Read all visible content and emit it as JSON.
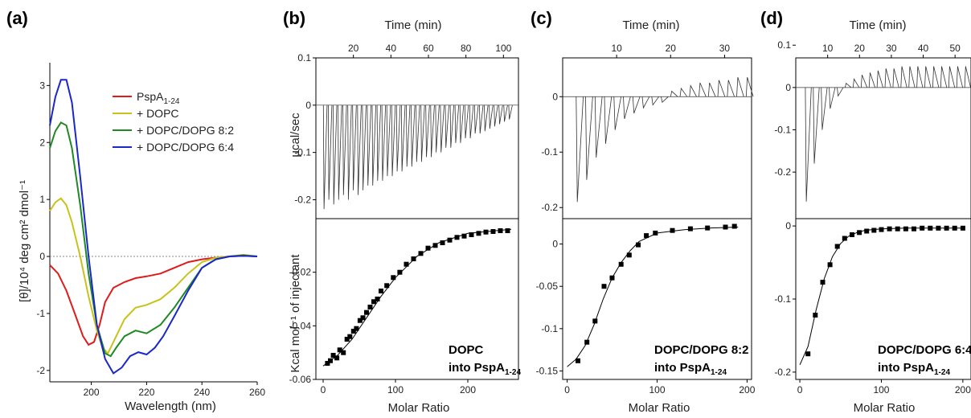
{
  "figure": {
    "panel_a": {
      "label": "(a)",
      "xlabel": "Wavelength (nm)",
      "ylabel": "[θ]/10⁴ deg cm² dmol⁻¹"
    },
    "panel_b": {
      "label": "(b)",
      "top_xlabel": "Time (min)",
      "top_ylabel": "μcal/sec",
      "bottom_xlabel": "Molar Ratio",
      "bottom_ylabel": "Kcal mol⁻¹ of injectant",
      "annotation_line1": "DOPC",
      "annotation_line2": "into PspA",
      "annotation_sub": "1-24"
    },
    "panel_c": {
      "label": "(c)",
      "top_xlabel": "Time (min)",
      "bottom_xlabel": "Molar Ratio",
      "annotation_line1": "DOPC/DOPG 8:2",
      "annotation_line2": "into PspA",
      "annotation_sub": "1-24"
    },
    "panel_d": {
      "label": "(d)",
      "top_xlabel": "Time (min)",
      "bottom_xlabel": "Molar Ratio",
      "annotation_line1": "DOPC/DOPG 6:4",
      "annotation_line2": "into PspA",
      "annotation_sub": "1-24"
    }
  },
  "chart_data": [
    {
      "panel": "a",
      "type": "line",
      "xlabel": "Wavelength (nm)",
      "ylabel": "[θ]/10⁴ deg cm² dmol⁻¹",
      "xlim": [
        185,
        260
      ],
      "ylim": [
        -2.2,
        3.4
      ],
      "xticks": [
        200,
        220,
        240,
        260
      ],
      "yticks": [
        -2,
        -1,
        0,
        1,
        2,
        3
      ],
      "reference_line": 0,
      "legend_position": "top-right",
      "series": [
        {
          "name": "PspA",
          "name_sub": "1-24",
          "color": "#e01b1b",
          "x": [
            185,
            188,
            191,
            194,
            197,
            199,
            201,
            203,
            205,
            208,
            212,
            216,
            220,
            225,
            230,
            235,
            240,
            245,
            250,
            255,
            260
          ],
          "y": [
            -0.15,
            -0.3,
            -0.6,
            -1.0,
            -1.4,
            -1.55,
            -1.5,
            -1.2,
            -0.8,
            -0.55,
            -0.45,
            -0.38,
            -0.35,
            -0.3,
            -0.2,
            -0.1,
            -0.05,
            -0.02,
            0.0,
            0.01,
            0.0
          ]
        },
        {
          "name": "+ DOPC",
          "color": "#c9c21a",
          "x": [
            185,
            187,
            189,
            191,
            193,
            196,
            199,
            202,
            204,
            206,
            208,
            212,
            216,
            220,
            225,
            230,
            235,
            240,
            245,
            250,
            255,
            260
          ],
          "y": [
            0.8,
            0.95,
            1.02,
            0.9,
            0.6,
            0.0,
            -0.7,
            -1.3,
            -1.6,
            -1.7,
            -1.5,
            -1.1,
            -0.9,
            -0.85,
            -0.75,
            -0.55,
            -0.3,
            -0.1,
            -0.02,
            0.0,
            0.03,
            0.0
          ]
        },
        {
          "name": "+ DOPC/DOPG 8:2",
          "color": "#1f8a24",
          "x": [
            185,
            187,
            189,
            191,
            193,
            196,
            199,
            202,
            205,
            207,
            209,
            212,
            216,
            220,
            225,
            230,
            235,
            240,
            245,
            250,
            255,
            260
          ],
          "y": [
            1.9,
            2.2,
            2.35,
            2.3,
            1.9,
            0.9,
            -0.3,
            -1.2,
            -1.7,
            -1.75,
            -1.6,
            -1.4,
            -1.3,
            -1.35,
            -1.2,
            -0.9,
            -0.55,
            -0.2,
            -0.05,
            0.0,
            0.02,
            0.0
          ]
        },
        {
          "name": "+ DOPC/DOPG 6:4",
          "color": "#1a28c9",
          "x": [
            185,
            187,
            189,
            191,
            193,
            196,
            199,
            202,
            205,
            208,
            211,
            214,
            217,
            220,
            223,
            226,
            230,
            235,
            240,
            245,
            250,
            255,
            260
          ],
          "y": [
            2.3,
            2.8,
            3.1,
            3.1,
            2.7,
            1.4,
            0.0,
            -1.2,
            -1.8,
            -2.05,
            -1.95,
            -1.75,
            -1.68,
            -1.72,
            -1.6,
            -1.4,
            -1.05,
            -0.6,
            -0.2,
            -0.05,
            0.0,
            0.01,
            0.0
          ]
        }
      ]
    },
    {
      "panel": "b-top",
      "type": "line",
      "description_series": "raw ITC heat rate",
      "xlabel": "Time (min)",
      "ylabel": "μcal/sec",
      "xlim": [
        0,
        108
      ],
      "ylim": [
        -0.24,
        0.1
      ],
      "xticks": [
        20,
        40,
        60,
        80,
        100
      ],
      "yticks": [
        -0.2,
        -0.1,
        0,
        0.1
      ],
      "injections": {
        "first_time": 4,
        "interval": 2.6,
        "count": 39,
        "peak_heights": [
          -0.22,
          -0.2,
          -0.21,
          -0.2,
          -0.19,
          -0.2,
          -0.18,
          -0.19,
          -0.18,
          -0.17,
          -0.17,
          -0.16,
          -0.16,
          -0.15,
          -0.15,
          -0.14,
          -0.14,
          -0.13,
          -0.13,
          -0.12,
          -0.12,
          -0.11,
          -0.11,
          -0.1,
          -0.1,
          -0.09,
          -0.09,
          -0.08,
          -0.08,
          -0.07,
          -0.07,
          -0.06,
          -0.06,
          -0.055,
          -0.05,
          -0.045,
          -0.04,
          -0.035,
          -0.03
        ]
      }
    },
    {
      "panel": "b-bottom",
      "type": "scatter",
      "xlabel": "Molar Ratio",
      "ylabel": "Kcal mol⁻¹ of injectant",
      "xlim": [
        -10,
        270
      ],
      "ylim": [
        -0.06,
        0.0
      ],
      "xticks": [
        0,
        100,
        200
      ],
      "yticks": [
        -0.06,
        -0.04,
        -0.02
      ],
      "points_x": [
        6,
        10,
        14,
        19,
        23,
        28,
        33,
        37,
        42,
        46,
        51,
        55,
        60,
        65,
        70,
        75,
        80,
        88,
        97,
        106,
        115,
        125,
        135,
        145,
        155,
        165,
        175,
        185,
        195,
        205,
        215,
        225,
        235,
        245,
        255
      ],
      "points_y": [
        -0.054,
        -0.053,
        -0.051,
        -0.052,
        -0.049,
        -0.05,
        -0.045,
        -0.044,
        -0.042,
        -0.041,
        -0.038,
        -0.037,
        -0.035,
        -0.033,
        -0.031,
        -0.03,
        -0.027,
        -0.025,
        -0.022,
        -0.02,
        -0.017,
        -0.015,
        -0.013,
        -0.011,
        -0.01,
        -0.009,
        -0.008,
        -0.007,
        -0.0065,
        -0.006,
        -0.0055,
        -0.005,
        -0.0048,
        -0.0045,
        -0.0045
      ],
      "fit_x": [
        0,
        20,
        40,
        60,
        80,
        100,
        130,
        160,
        200,
        260
      ],
      "fit_y": [
        -0.055,
        -0.051,
        -0.045,
        -0.037,
        -0.029,
        -0.022,
        -0.014,
        -0.009,
        -0.0055,
        -0.004
      ]
    },
    {
      "panel": "c-top",
      "type": "line",
      "xlabel": "Time (min)",
      "xlim": [
        0,
        35
      ],
      "ylim": [
        -0.22,
        0.07
      ],
      "xticks": [
        10,
        20,
        30
      ],
      "yticks": [
        -0.2,
        -0.1,
        0
      ],
      "injections": {
        "first_time": 2.5,
        "interval": 1.75,
        "count": 19,
        "peak_heights": [
          -0.19,
          -0.15,
          -0.11,
          -0.085,
          -0.06,
          -0.04,
          -0.03,
          -0.02,
          -0.015,
          -0.01,
          0.01,
          0.015,
          0.02,
          0.025,
          0.025,
          0.03,
          0.03,
          0.035,
          0.035
        ]
      }
    },
    {
      "panel": "c-bottom",
      "type": "scatter",
      "xlabel": "Molar Ratio",
      "xlim": [
        -5,
        205
      ],
      "ylim": [
        -0.16,
        0.03
      ],
      "xticks": [
        0,
        100,
        200
      ],
      "yticks": [
        -0.15,
        -0.1,
        -0.05,
        0
      ],
      "points_x": [
        12,
        22,
        31,
        41,
        50,
        60,
        69,
        79,
        88,
        98,
        117,
        137,
        156,
        176,
        186
      ],
      "points_y": [
        -0.138,
        -0.116,
        -0.091,
        -0.05,
        -0.04,
        -0.024,
        -0.013,
        -0.001,
        0.01,
        0.013,
        0.016,
        0.018,
        0.019,
        0.02,
        0.021
      ],
      "fit_x": [
        0,
        10,
        20,
        30,
        40,
        50,
        60,
        70,
        80,
        100,
        130,
        160,
        190
      ],
      "fit_y": [
        -0.145,
        -0.136,
        -0.12,
        -0.095,
        -0.065,
        -0.04,
        -0.022,
        -0.008,
        0.003,
        0.013,
        0.017,
        0.019,
        0.02
      ]
    },
    {
      "panel": "d-top",
      "type": "line",
      "xlabel": "Time (min)",
      "xlim": [
        0,
        55
      ],
      "ylim": [
        -0.31,
        0.07
      ],
      "xticks": [
        10,
        20,
        30,
        40,
        50
      ],
      "yticks": [
        -0.2,
        -0.1,
        0,
        0.1
      ],
      "injections": {
        "first_time": 3,
        "interval": 2.5,
        "count": 21,
        "peak_heights": [
          -0.27,
          -0.18,
          -0.1,
          -0.05,
          -0.02,
          0.01,
          0.02,
          0.03,
          0.035,
          0.04,
          0.045,
          0.045,
          0.05,
          0.05,
          0.05,
          0.05,
          0.05,
          0.05,
          0.05,
          0.05,
          0.05
        ]
      }
    },
    {
      "panel": "d-bottom",
      "type": "scatter",
      "xlabel": "Molar Ratio",
      "xlim": [
        -5,
        210
      ],
      "ylim": [
        -0.21,
        0.01
      ],
      "xticks": [
        0,
        100,
        200
      ],
      "yticks": [
        -0.2,
        -0.1,
        0
      ],
      "points_x": [
        10,
        19,
        28,
        37,
        46,
        55,
        64,
        73,
        82,
        91,
        100,
        110,
        120,
        130,
        140,
        150,
        160,
        170,
        180,
        190,
        200
      ],
      "points_y": [
        -0.175,
        -0.122,
        -0.077,
        -0.053,
        -0.028,
        -0.017,
        -0.012,
        -0.009,
        -0.007,
        -0.006,
        -0.005,
        -0.004,
        -0.004,
        -0.004,
        -0.004,
        -0.003,
        -0.003,
        -0.003,
        -0.003,
        -0.003,
        -0.003
      ],
      "fit_x": [
        0,
        10,
        20,
        30,
        40,
        50,
        60,
        70,
        80,
        100,
        130,
        160,
        200
      ],
      "fit_y": [
        -0.19,
        -0.165,
        -0.115,
        -0.072,
        -0.042,
        -0.024,
        -0.014,
        -0.009,
        -0.006,
        -0.004,
        -0.003,
        -0.003,
        -0.003
      ]
    }
  ]
}
